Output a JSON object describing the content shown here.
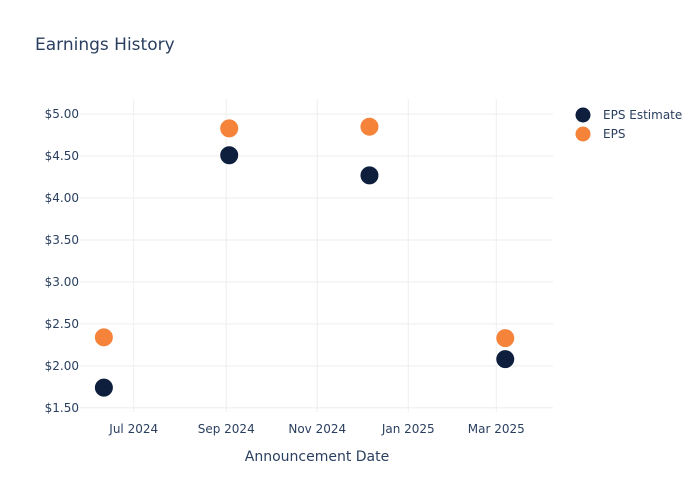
{
  "colors": {
    "eps_estimate": "#0d1f3c",
    "eps": "#f5843a",
    "text": "#2a3f5f",
    "grid": "#eeeeee"
  },
  "chart_data": {
    "type": "scatter",
    "title": "Earnings History",
    "xlabel": "Announcement Date",
    "ylabel": "",
    "x_type": "date",
    "xlim": [
      "2024-05-26",
      "2025-04-08"
    ],
    "ylim": [
      1.45,
      5.18
    ],
    "x_ticks": [
      "2024-07-01",
      "2024-09-01",
      "2024-11-01",
      "2025-01-01",
      "2025-03-01"
    ],
    "x_tick_labels": [
      "Jul 2024",
      "Sep 2024",
      "Nov 2024",
      "Jan 2025",
      "Mar 2025"
    ],
    "y_ticks": [
      1.5,
      2.0,
      2.5,
      3.0,
      3.5,
      4.0,
      4.5,
      5.0
    ],
    "y_tick_labels": [
      "$1.50",
      "$2.00",
      "$2.50",
      "$3.00",
      "$3.50",
      "$4.00",
      "$4.50",
      "$5.00"
    ],
    "grid": true,
    "legend": "top-right",
    "series": [
      {
        "name": "EPS Estimate",
        "color": "#0d1f3c",
        "points": [
          {
            "x": "2024-06-11",
            "y": 1.74
          },
          {
            "x": "2024-09-03",
            "y": 4.51
          },
          {
            "x": "2024-12-06",
            "y": 4.27
          },
          {
            "x": "2025-03-07",
            "y": 2.08
          }
        ]
      },
      {
        "name": "EPS",
        "color": "#f5843a",
        "points": [
          {
            "x": "2024-06-11",
            "y": 2.34
          },
          {
            "x": "2024-09-03",
            "y": 4.83
          },
          {
            "x": "2024-12-06",
            "y": 4.85
          },
          {
            "x": "2025-03-07",
            "y": 2.33
          }
        ]
      }
    ]
  }
}
